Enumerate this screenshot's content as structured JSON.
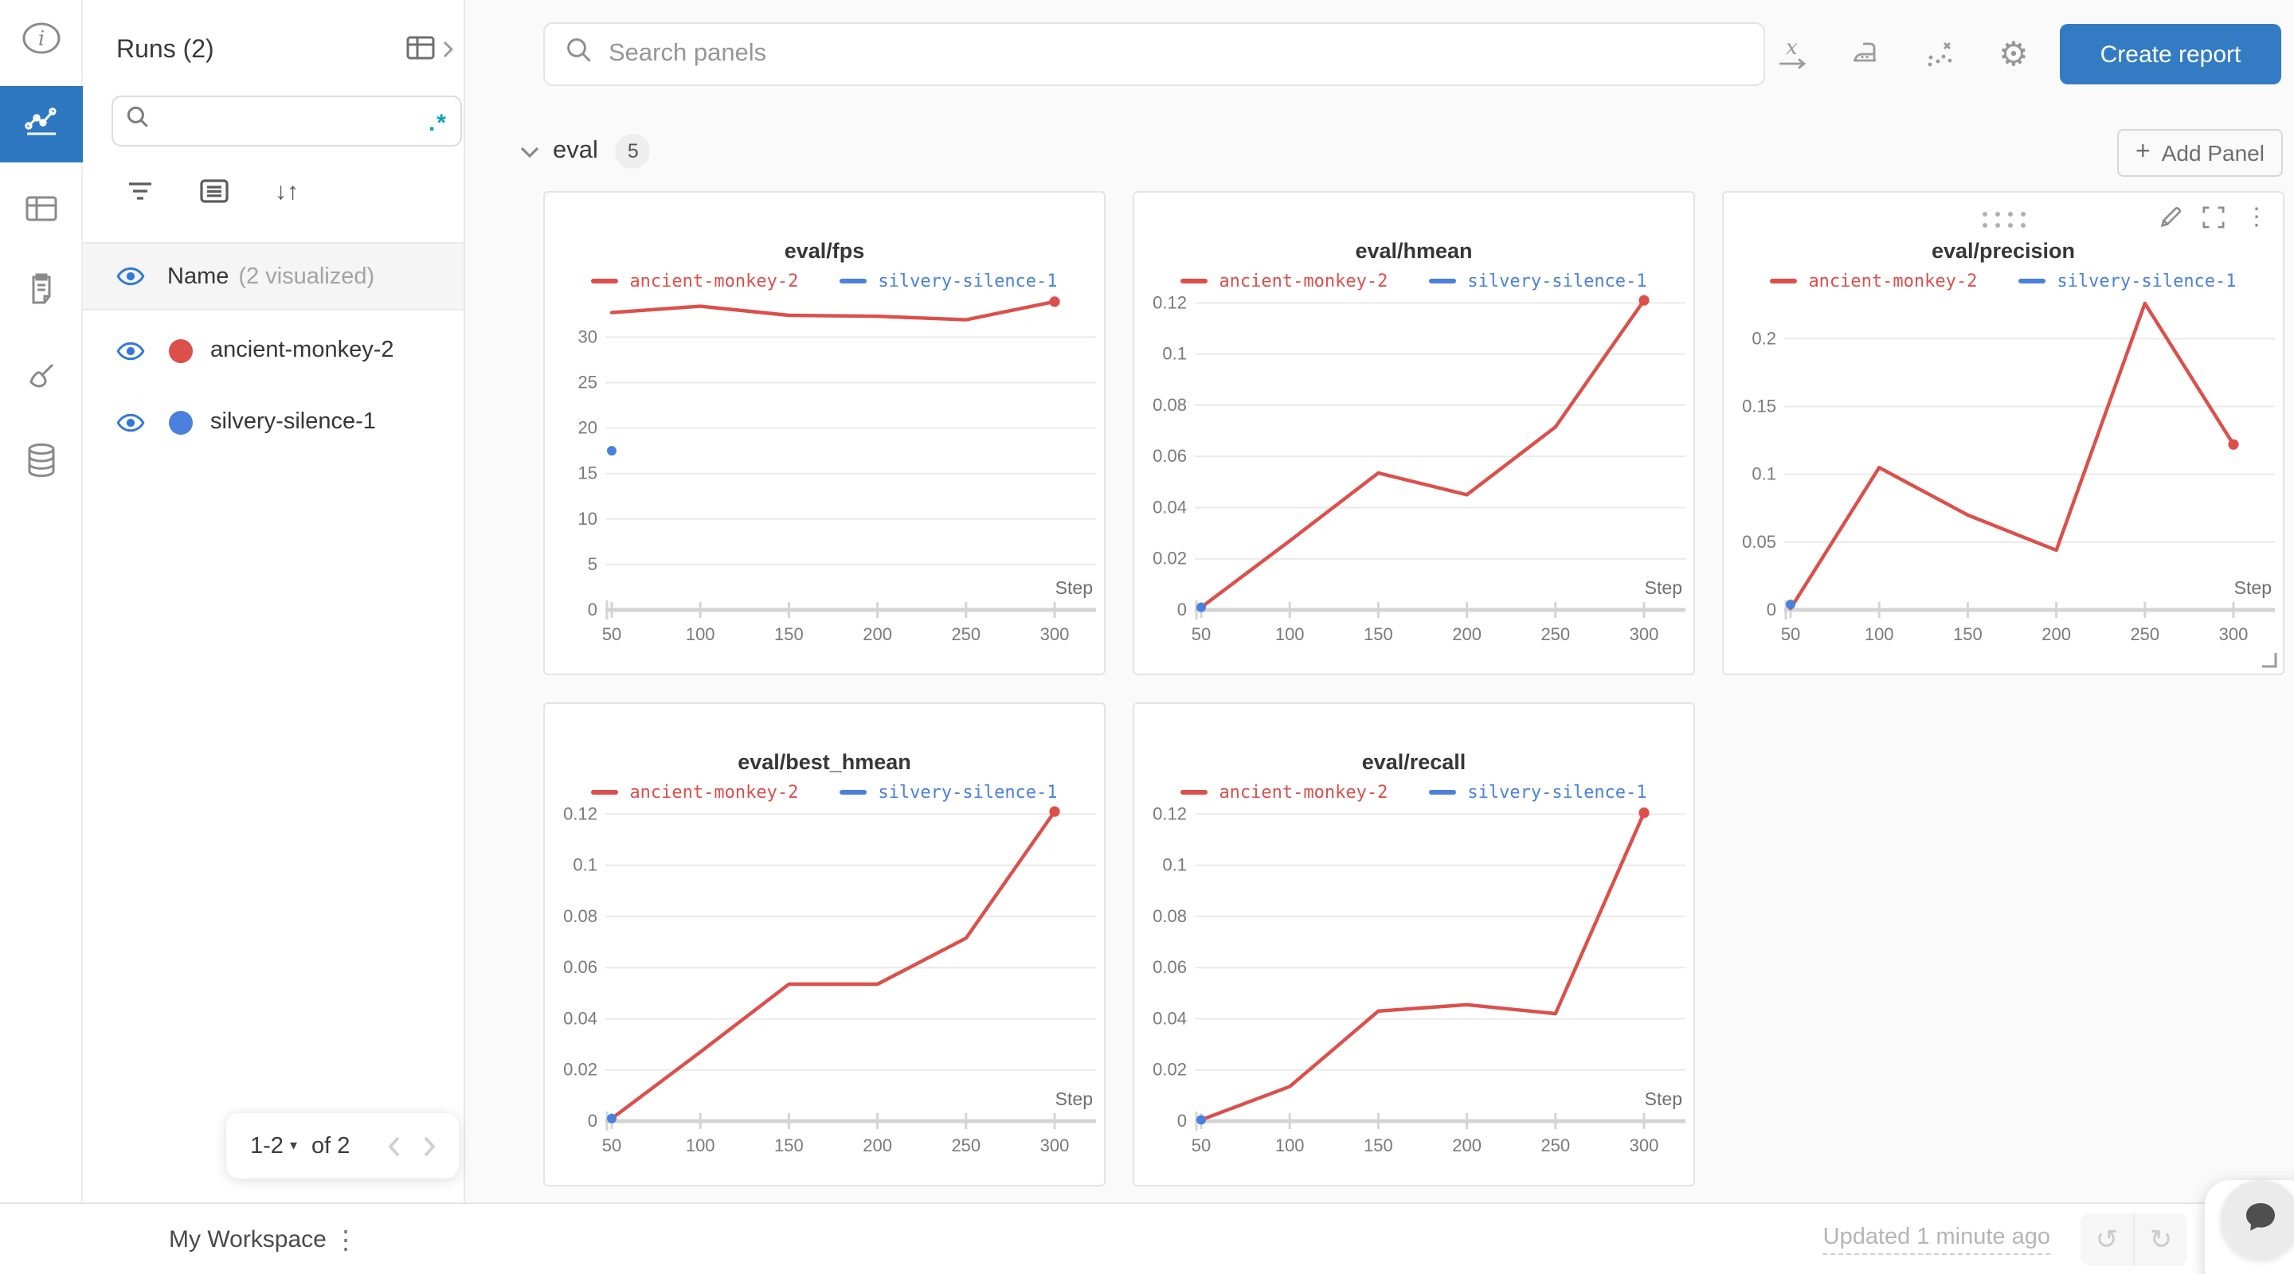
{
  "colors": {
    "rail_active": "#2d78c0",
    "button_blue": "#337cc4",
    "run_red": "#dc4f4b",
    "run_blue": "#4b80dc",
    "regex_teal": "#0ca5b5",
    "grid_line": "#eaeaea",
    "axis_line": "#d4d4d4"
  },
  "icons": {
    "gear": "⚙",
    "kebab": "⋮",
    "undo": "↺",
    "redo": "↻",
    "caret_down": "▾",
    "plus": "+",
    "regex": ".*",
    "sort": "↓↑",
    "info_i": "i"
  },
  "runs_sidebar": {
    "title": "Runs (2)",
    "header_name": "Name",
    "header_visualized": "(2 visualized)",
    "runs": [
      {
        "name": "ancient-monkey-2",
        "color": "#dc4f4b"
      },
      {
        "name": "silvery-silence-1",
        "color": "#4b80dc"
      }
    ],
    "pagination": {
      "range": "1-2",
      "of": "of 2"
    }
  },
  "topbar": {
    "search_placeholder": "Search panels",
    "create_report": "Create report"
  },
  "section": {
    "name": "eval",
    "count": "5",
    "add_panel": "Add Panel"
  },
  "footer": {
    "workspace": "My Workspace",
    "updated": "Updated 1 minute ago"
  },
  "chart_data": [
    {
      "type": "line",
      "title": "eval/fps",
      "xlabel": "Step",
      "xmin": 50,
      "xmax": 300,
      "xticks": [
        50,
        100,
        150,
        200,
        250,
        300
      ],
      "xtick_labels": [
        "50",
        "100",
        "150",
        "200",
        "250",
        "300"
      ],
      "ylim": [
        0,
        35.2
      ],
      "ytick_values": [
        0,
        5,
        10,
        15,
        20,
        25,
        30
      ],
      "ytick_labels": [
        "0",
        "5",
        "10",
        "15",
        "20",
        "25",
        "30"
      ],
      "legend_position": "top",
      "grid": true,
      "hovered": false,
      "series": [
        {
          "name": "ancient-monkey-2",
          "color": "#dc4f4b",
          "x": [
            50,
            100,
            150,
            200,
            250,
            300
          ],
          "y": [
            32.7,
            33.4,
            32.4,
            32.3,
            31.9,
            33.9
          ],
          "end_dot": true
        },
        {
          "name": "silvery-silence-1",
          "color": "#4b80dc",
          "x": [
            50
          ],
          "y": [
            17.5
          ],
          "point_only": true
        }
      ]
    },
    {
      "type": "line",
      "title": "eval/hmean",
      "xlabel": "Step",
      "xmin": 50,
      "xmax": 300,
      "xticks": [
        50,
        100,
        150,
        200,
        250,
        300
      ],
      "xtick_labels": [
        "50",
        "100",
        "150",
        "200",
        "250",
        "300"
      ],
      "ylim": [
        0,
        0.1251
      ],
      "ytick_values": [
        0,
        0.02,
        0.04,
        0.06,
        0.08,
        0.1,
        0.12
      ],
      "ytick_labels": [
        "0",
        "0.02",
        "0.04",
        "0.06",
        "0.08",
        "0.1",
        "0.12"
      ],
      "legend_position": "top",
      "grid": true,
      "hovered": false,
      "series": [
        {
          "name": "ancient-monkey-2",
          "color": "#dc4f4b",
          "x": [
            50,
            100,
            150,
            200,
            250,
            300
          ],
          "y": [
            0.001,
            0.027,
            0.0535,
            0.045,
            0.0715,
            0.121
          ],
          "end_dot": true
        },
        {
          "name": "silvery-silence-1",
          "color": "#4b80dc",
          "x": [
            50
          ],
          "y": [
            0.001
          ],
          "point_only": true
        }
      ]
    },
    {
      "type": "line",
      "title": "eval/precision",
      "xlabel": "Step",
      "xmin": 50,
      "xmax": 300,
      "xticks": [
        50,
        100,
        150,
        200,
        250,
        300
      ],
      "xtick_labels": [
        "50",
        "100",
        "150",
        "200",
        "250",
        "300"
      ],
      "ylim": [
        0,
        0.236
      ],
      "ytick_values": [
        0,
        0.05,
        0.1,
        0.15,
        0.2
      ],
      "ytick_labels": [
        "0",
        "0.05",
        "0.1",
        "0.15",
        "0.2"
      ],
      "legend_position": "top",
      "grid": true,
      "hovered": true,
      "series": [
        {
          "name": "ancient-monkey-2",
          "color": "#dc4f4b",
          "x": [
            50,
            100,
            150,
            200,
            250,
            300
          ],
          "y": [
            0.001,
            0.105,
            0.07,
            0.044,
            0.226,
            0.122
          ],
          "end_dot": true
        },
        {
          "name": "silvery-silence-1",
          "color": "#4b80dc",
          "x": [
            50
          ],
          "y": [
            0.004
          ],
          "point_only": true
        }
      ]
    },
    {
      "type": "line",
      "title": "eval/best_hmean",
      "xlabel": "Step",
      "xmin": 50,
      "xmax": 300,
      "xticks": [
        50,
        100,
        150,
        200,
        250,
        300
      ],
      "xtick_labels": [
        "50",
        "100",
        "150",
        "200",
        "250",
        "300"
      ],
      "ylim": [
        0,
        0.1251
      ],
      "ytick_values": [
        0,
        0.02,
        0.04,
        0.06,
        0.08,
        0.1,
        0.12
      ],
      "ytick_labels": [
        "0",
        "0.02",
        "0.04",
        "0.06",
        "0.08",
        "0.1",
        "0.12"
      ],
      "legend_position": "top",
      "grid": true,
      "hovered": false,
      "series": [
        {
          "name": "ancient-monkey-2",
          "color": "#dc4f4b",
          "x": [
            50,
            100,
            150,
            200,
            250,
            300
          ],
          "y": [
            0.001,
            0.027,
            0.0535,
            0.0535,
            0.0715,
            0.121
          ],
          "end_dot": true
        },
        {
          "name": "silvery-silence-1",
          "color": "#4b80dc",
          "x": [
            50
          ],
          "y": [
            0.001
          ],
          "point_only": true
        }
      ]
    },
    {
      "type": "line",
      "title": "eval/recall",
      "xlabel": "Step",
      "xmin": 50,
      "xmax": 300,
      "xticks": [
        50,
        100,
        150,
        200,
        250,
        300
      ],
      "xtick_labels": [
        "50",
        "100",
        "150",
        "200",
        "250",
        "300"
      ],
      "ylim": [
        0,
        0.1251
      ],
      "ytick_values": [
        0,
        0.02,
        0.04,
        0.06,
        0.08,
        0.1,
        0.12
      ],
      "ytick_labels": [
        "0",
        "0.02",
        "0.04",
        "0.06",
        "0.08",
        "0.1",
        "0.12"
      ],
      "legend_position": "top",
      "grid": true,
      "hovered": false,
      "series": [
        {
          "name": "ancient-monkey-2",
          "color": "#dc4f4b",
          "x": [
            50,
            100,
            150,
            200,
            250,
            300
          ],
          "y": [
            0.0005,
            0.0135,
            0.043,
            0.0455,
            0.042,
            0.1205
          ],
          "end_dot": true
        },
        {
          "name": "silvery-silence-1",
          "color": "#4b80dc",
          "x": [
            50
          ],
          "y": [
            0.0005
          ],
          "point_only": true
        }
      ]
    }
  ]
}
